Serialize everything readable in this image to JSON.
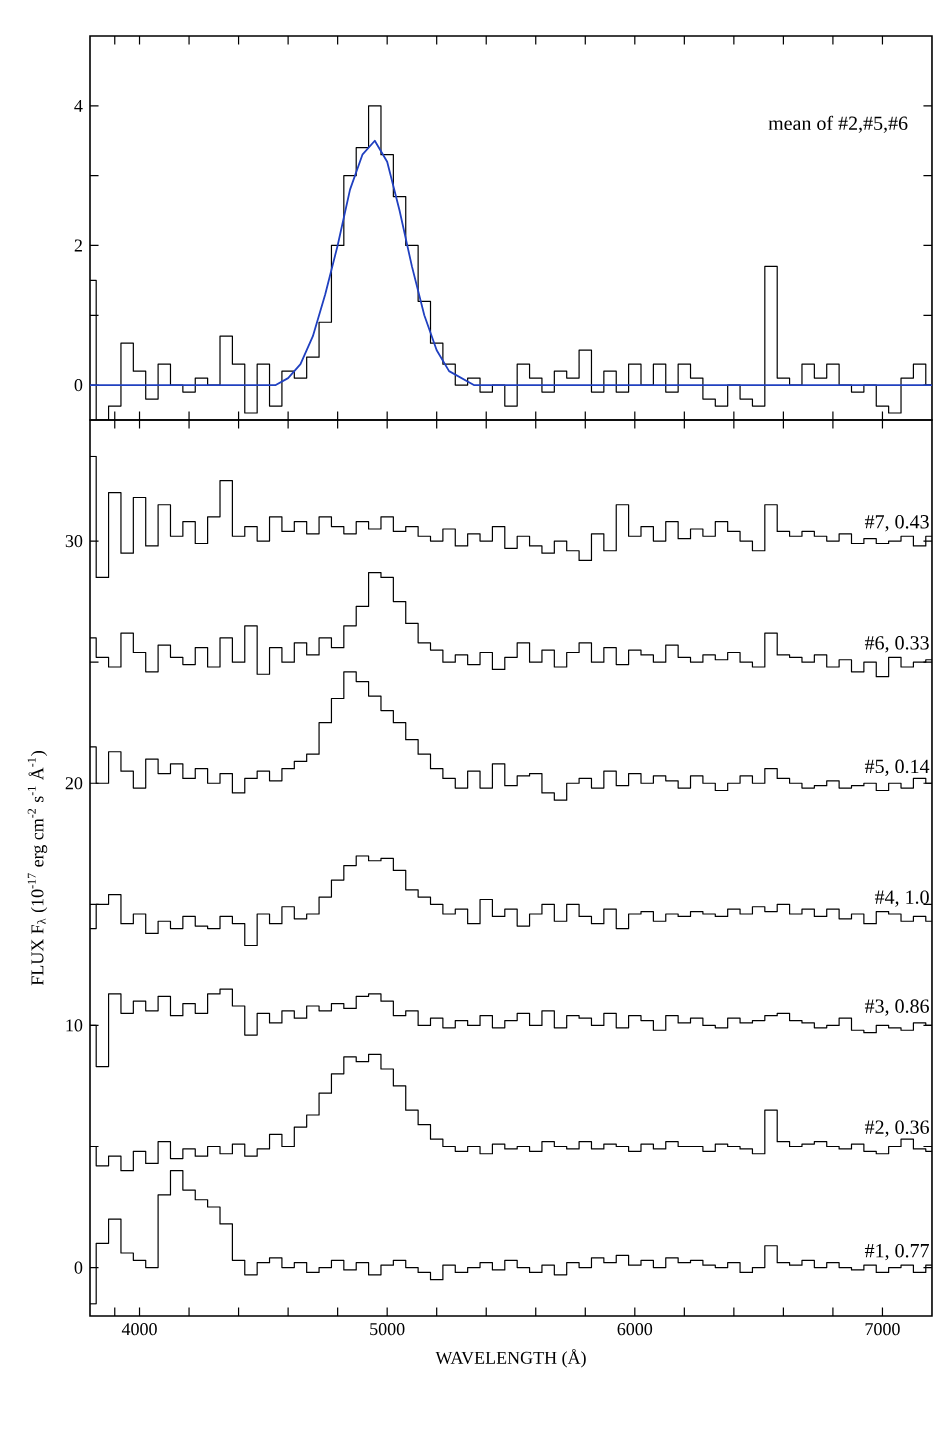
{
  "chart_data": [
    {
      "type": "step",
      "annotations": [
        "mean of #2,#5,#6"
      ],
      "tick_labels": "y",
      "x": [
        3800,
        3850,
        3900,
        3950,
        4000,
        4050,
        4100,
        4150,
        4200,
        4250,
        4300,
        4350,
        4400,
        4450,
        4500,
        4550,
        4600,
        4650,
        4700,
        4750,
        4800,
        4850,
        4900,
        4950,
        5000,
        5050,
        5100,
        5150,
        5200,
        5250,
        5300,
        5350,
        5400,
        5450,
        5500,
        5550,
        5600,
        5650,
        5700,
        5750,
        5800,
        5850,
        5900,
        5950,
        6000,
        6050,
        6100,
        6150,
        6200,
        6250,
        6300,
        6350,
        6400,
        6450,
        6500,
        6550,
        6600,
        6650,
        6700,
        6750,
        6800,
        6850,
        6900,
        6950,
        7000,
        7050,
        7100,
        7150,
        7200
      ],
      "series": [
        {
          "color": "#000000",
          "values": [
            1.5,
            -0.5,
            -0.3,
            0.6,
            0.2,
            -0.2,
            0.3,
            0.0,
            -0.1,
            0.1,
            0.0,
            0.7,
            0.3,
            -0.4,
            0.3,
            -0.3,
            0.2,
            0.1,
            0.4,
            0.9,
            2.0,
            3.0,
            3.4,
            4.0,
            3.3,
            2.7,
            2.0,
            1.2,
            0.6,
            0.3,
            0.0,
            0.1,
            -0.1,
            0.0,
            -0.3,
            0.3,
            0.1,
            -0.1,
            0.2,
            0.1,
            0.5,
            -0.1,
            0.2,
            -0.1,
            0.3,
            0.0,
            0.3,
            -0.1,
            0.3,
            0.1,
            -0.2,
            -0.3,
            0.0,
            -0.2,
            -0.3,
            1.7,
            0.1,
            0.0,
            0.3,
            0.1,
            0.3,
            0.0,
            -0.1,
            0.0,
            -0.3,
            -0.4,
            0.1,
            0.3,
            0.0
          ]
        },
        {
          "type": "line",
          "color": "#2040c0",
          "x": [
            3800,
            4550,
            4600,
            4650,
            4700,
            4750,
            4800,
            4850,
            4900,
            4950,
            5000,
            5050,
            5100,
            5150,
            5200,
            5250,
            5300,
            5350,
            7200
          ],
          "values": [
            0.0,
            0.0,
            0.1,
            0.3,
            0.7,
            1.3,
            2.0,
            2.8,
            3.3,
            3.5,
            3.2,
            2.5,
            1.7,
            1.0,
            0.5,
            0.2,
            0.1,
            0.0,
            0.0
          ]
        }
      ],
      "xlim": [
        3800,
        7200
      ],
      "ylim": [
        -0.5,
        5
      ],
      "xticks": [
        {
          "value": 3900,
          "label": null
        },
        {
          "value": 4000,
          "label": null
        },
        {
          "value": 4200,
          "label": null
        },
        {
          "value": 4400,
          "label": null
        },
        {
          "value": 4600,
          "label": null
        },
        {
          "value": 4800,
          "label": null
        },
        {
          "value": 5000,
          "label": null
        },
        {
          "value": 5200,
          "label": null
        },
        {
          "value": 5400,
          "label": null
        },
        {
          "value": 5600,
          "label": null
        },
        {
          "value": 5800,
          "label": null
        },
        {
          "value": 6000,
          "label": null
        },
        {
          "value": 6200,
          "label": null
        },
        {
          "value": 6400,
          "label": null
        },
        {
          "value": 6600,
          "label": null
        },
        {
          "value": 6800,
          "label": null
        },
        {
          "value": 7000,
          "label": null
        }
      ],
      "yticks": [
        0,
        {
          "value": 1,
          "label": null
        },
        2,
        {
          "value": 3,
          "label": null
        },
        4
      ]
    },
    {
      "type": "step",
      "xlabel": "WAVELENGTH (Å)",
      "ylabel": "FLUX F$_{λ}$ (10$^{-17}$ erg cm$^{-2}$ s$^{-1}$ Å$^{-1}$)",
      "x": [
        3800,
        3850,
        3900,
        3950,
        4000,
        4050,
        4100,
        4150,
        4200,
        4250,
        4300,
        4350,
        4400,
        4450,
        4500,
        4550,
        4600,
        4650,
        4700,
        4750,
        4800,
        4850,
        4900,
        4950,
        5000,
        5050,
        5100,
        5150,
        5200,
        5250,
        5300,
        5350,
        5400,
        5450,
        5500,
        5550,
        5600,
        5650,
        5700,
        5750,
        5800,
        5850,
        5900,
        5950,
        6000,
        6050,
        6100,
        6150,
        6200,
        6250,
        6300,
        6350,
        6400,
        6450,
        6500,
        6550,
        6600,
        6650,
        6700,
        6750,
        6800,
        6850,
        6900,
        6950,
        7000,
        7050,
        7100,
        7150,
        7200
      ],
      "series": [
        {
          "name": "#7, 0.43",
          "color": "#000000",
          "values": [
            33.5,
            28.5,
            32.0,
            29.5,
            31.8,
            29.8,
            31.5,
            30.2,
            30.8,
            29.9,
            31.0,
            32.5,
            30.2,
            30.6,
            30.0,
            31.0,
            30.4,
            30.8,
            30.3,
            31.0,
            30.6,
            30.3,
            30.8,
            30.5,
            31.0,
            30.4,
            30.6,
            30.2,
            30.0,
            30.5,
            29.8,
            30.3,
            30.0,
            30.6,
            29.7,
            30.2,
            29.8,
            29.5,
            30.0,
            29.6,
            29.2,
            30.3,
            29.6,
            31.5,
            30.2,
            30.6,
            30.0,
            30.8,
            30.1,
            30.5,
            30.2,
            30.8,
            30.4,
            30.0,
            29.6,
            31.5,
            30.4,
            30.2,
            30.4,
            30.2,
            30.0,
            30.3,
            29.9,
            30.1,
            29.9,
            30.0,
            30.2,
            29.8,
            30.2
          ]
        },
        {
          "name": "#6, 0.33",
          "color": "#000000",
          "values": [
            26.0,
            25.2,
            24.8,
            26.2,
            25.4,
            24.6,
            25.7,
            25.2,
            24.9,
            25.6,
            24.8,
            26.0,
            25.0,
            26.5,
            24.5,
            25.6,
            25.0,
            25.8,
            25.3,
            26.0,
            25.6,
            26.5,
            27.3,
            28.7,
            28.5,
            27.5,
            26.6,
            25.8,
            25.5,
            25.0,
            25.3,
            24.9,
            25.4,
            24.7,
            25.2,
            25.8,
            25.0,
            25.5,
            24.8,
            25.4,
            25.8,
            25.0,
            25.6,
            24.9,
            25.5,
            25.3,
            25.0,
            25.7,
            25.2,
            25.0,
            25.3,
            25.1,
            25.4,
            25.0,
            24.8,
            26.2,
            25.3,
            25.2,
            25.0,
            25.3,
            24.8,
            25.1,
            24.6,
            25.0,
            24.4,
            25.2,
            24.8,
            25.0,
            25.1
          ]
        },
        {
          "name": "#5, 0.14",
          "color": "#000000",
          "values": [
            21.5,
            20.0,
            21.3,
            20.5,
            19.8,
            21.0,
            20.4,
            20.8,
            20.2,
            20.6,
            20.0,
            20.4,
            19.6,
            20.2,
            20.5,
            20.1,
            20.6,
            20.9,
            21.2,
            22.5,
            23.5,
            24.6,
            24.2,
            23.6,
            23.0,
            22.5,
            21.8,
            21.2,
            20.6,
            20.2,
            19.8,
            20.5,
            19.8,
            20.8,
            19.9,
            20.3,
            20.4,
            19.6,
            19.3,
            20.0,
            20.2,
            19.8,
            20.5,
            19.9,
            20.4,
            20.0,
            20.3,
            20.1,
            19.8,
            20.3,
            20.0,
            19.7,
            20.0,
            20.3,
            20.0,
            20.6,
            20.2,
            20.0,
            19.8,
            19.9,
            20.1,
            19.8,
            19.9,
            20.0,
            19.7,
            20.0,
            19.8,
            20.2,
            20.0
          ]
        },
        {
          "name": "#4, 1.0",
          "color": "#000000",
          "values": [
            14.0,
            15.0,
            15.4,
            14.2,
            14.6,
            13.8,
            14.3,
            14.0,
            14.5,
            14.1,
            14.0,
            14.5,
            14.2,
            13.3,
            14.6,
            14.2,
            14.9,
            14.4,
            14.6,
            15.3,
            16.0,
            16.6,
            17.0,
            16.8,
            16.9,
            16.4,
            15.6,
            15.3,
            15.0,
            14.6,
            14.8,
            14.2,
            15.2,
            14.5,
            14.8,
            14.1,
            14.6,
            15.0,
            14.3,
            15.0,
            14.5,
            14.2,
            14.8,
            14.0,
            14.6,
            14.7,
            14.3,
            14.6,
            14.5,
            14.7,
            14.6,
            14.5,
            14.8,
            14.6,
            14.9,
            14.7,
            15.0,
            14.6,
            14.8,
            14.5,
            14.8,
            14.4,
            14.6,
            14.2,
            14.7,
            14.6,
            14.3,
            14.5,
            14.3
          ]
        },
        {
          "name": "#3, 0.86",
          "color": "#000000",
          "values": [
            10.0,
            8.3,
            11.3,
            10.5,
            11.0,
            10.6,
            11.2,
            10.4,
            10.9,
            10.5,
            11.3,
            11.5,
            10.8,
            9.6,
            10.5,
            10.1,
            10.6,
            10.3,
            10.8,
            10.6,
            10.9,
            10.7,
            11.2,
            11.3,
            11.0,
            10.4,
            10.6,
            10.0,
            10.3,
            9.9,
            10.2,
            10.0,
            10.4,
            9.9,
            10.2,
            10.5,
            10.0,
            10.6,
            9.9,
            10.4,
            10.3,
            10.0,
            10.5,
            9.9,
            10.4,
            10.2,
            9.8,
            10.4,
            10.1,
            10.3,
            10.0,
            9.9,
            10.3,
            10.1,
            10.2,
            10.4,
            10.5,
            10.2,
            10.1,
            9.9,
            10.0,
            10.3,
            9.8,
            9.7,
            10.0,
            9.9,
            9.8,
            10.1,
            10.0
          ]
        },
        {
          "name": "#2, 0.36",
          "color": "#000000",
          "values": [
            5.0,
            4.2,
            4.6,
            4.0,
            4.8,
            4.3,
            5.2,
            4.5,
            4.9,
            4.6,
            5.0,
            4.7,
            5.1,
            4.6,
            4.9,
            5.5,
            5.0,
            5.8,
            6.3,
            7.2,
            8.0,
            8.7,
            8.5,
            8.8,
            8.2,
            7.5,
            6.5,
            5.9,
            5.3,
            5.0,
            4.8,
            5.0,
            4.7,
            5.1,
            4.9,
            5.0,
            4.8,
            5.2,
            5.0,
            4.9,
            5.2,
            4.9,
            5.1,
            5.0,
            4.8,
            5.1,
            4.9,
            5.2,
            5.0,
            5.0,
            4.8,
            5.1,
            5.0,
            4.9,
            4.7,
            6.5,
            5.2,
            5.0,
            5.1,
            5.2,
            5.0,
            4.9,
            5.1,
            4.8,
            4.7,
            5.0,
            5.3,
            4.9,
            4.8
          ]
        },
        {
          "name": "#1, 0.77",
          "color": "#000000",
          "values": [
            -1.5,
            1.0,
            2.0,
            0.6,
            0.3,
            0.0,
            3.0,
            4.0,
            3.2,
            2.8,
            2.5,
            1.8,
            0.3,
            -0.3,
            0.2,
            0.4,
            0.0,
            0.2,
            -0.2,
            0.0,
            0.3,
            -0.1,
            0.2,
            -0.3,
            0.1,
            0.3,
            0.0,
            -0.2,
            -0.5,
            0.1,
            -0.2,
            0.0,
            0.2,
            -0.1,
            0.3,
            0.0,
            -0.2,
            0.1,
            -0.3,
            0.2,
            0.0,
            0.4,
            0.2,
            0.5,
            0.1,
            0.3,
            0.0,
            0.4,
            0.2,
            0.3,
            0.1,
            0.0,
            0.2,
            -0.2,
            0.0,
            0.9,
            0.2,
            0.1,
            0.3,
            0.0,
            0.2,
            0.0,
            -0.1,
            0.1,
            -0.2,
            0.0,
            0.1,
            -0.2,
            0.1
          ]
        }
      ],
      "xlim": [
        3800,
        7200
      ],
      "ylim": [
        -2,
        35
      ],
      "xticks": [
        {
          "value": 3900,
          "label": null
        },
        4000,
        {
          "value": 4200,
          "label": null
        },
        {
          "value": 4400,
          "label": null
        },
        {
          "value": 4600,
          "label": null
        },
        {
          "value": 4800,
          "label": null
        },
        5000,
        {
          "value": 5200,
          "label": null
        },
        {
          "value": 5400,
          "label": null
        },
        {
          "value": 5600,
          "label": null
        },
        {
          "value": 5800,
          "label": null
        },
        6000,
        {
          "value": 6200,
          "label": null
        },
        {
          "value": 6400,
          "label": null
        },
        {
          "value": 6600,
          "label": null
        },
        {
          "value": 6800,
          "label": null
        },
        7000
      ],
      "yticks": [
        0,
        {
          "value": 5,
          "label": null
        },
        10,
        {
          "value": 15,
          "label": null
        },
        20,
        {
          "value": 25,
          "label": null
        },
        30
      ]
    }
  ]
}
